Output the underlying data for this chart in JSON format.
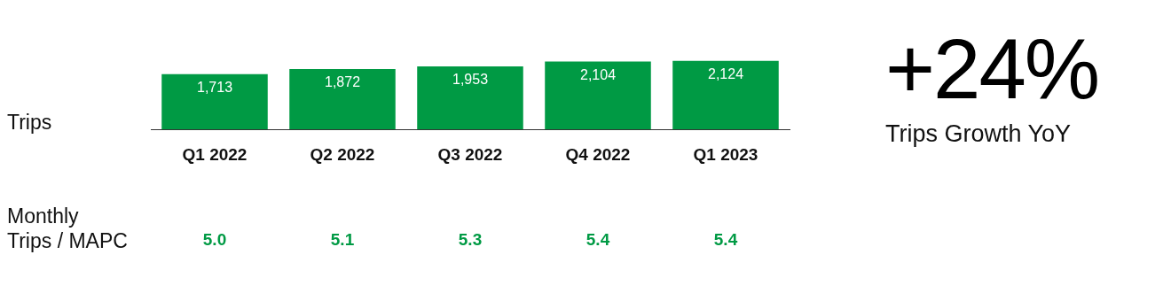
{
  "chart_data": [
    {
      "type": "bar",
      "ylabel": "Trips",
      "categories": [
        "Q1 2022",
        "Q2 2022",
        "Q3 2022",
        "Q4 2022",
        "Q1 2023"
      ],
      "values": [
        1713,
        1872,
        1953,
        2104,
        2124
      ],
      "value_labels": [
        "1,713",
        "1,872",
        "1,953",
        "2,104",
        "2,124"
      ],
      "color": "#009a44",
      "grid": false,
      "legend": false
    },
    {
      "type": "other",
      "ylabel": "Monthly\nTrips / MAPC",
      "values": [
        5.0,
        5.1,
        5.3,
        5.4,
        5.4
      ],
      "value_labels": [
        "5.0",
        "5.1",
        "5.3",
        "5.4",
        "5.4"
      ],
      "color": "#009a44"
    },
    {
      "type": "other",
      "title": "+24%",
      "subtitle": "Trips Growth YoY"
    }
  ]
}
